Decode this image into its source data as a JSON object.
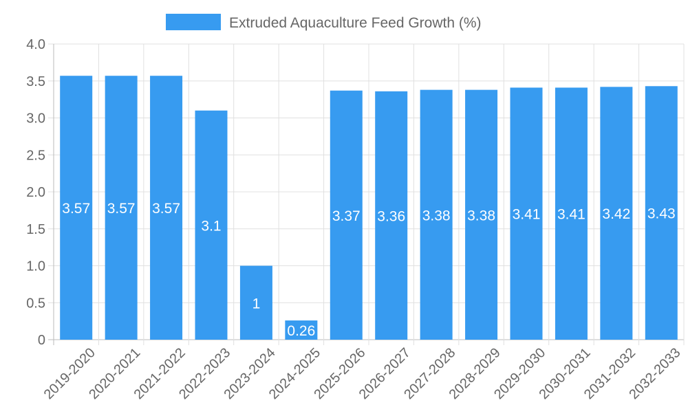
{
  "chart_data": {
    "type": "bar",
    "title": "",
    "xlabel": "",
    "ylabel": "",
    "legend": {
      "label": "Extruded Aquaculture Feed Growth (%)",
      "placement": "top-center"
    },
    "categories": [
      "2019-2020",
      "2020-2021",
      "2021-2022",
      "2022-2023",
      "2023-2024",
      "2024-2025",
      "2025-2026",
      "2026-2027",
      "2027-2028",
      "2028-2029",
      "2029-2030",
      "2030-2031",
      "2031-2032",
      "2032-2033"
    ],
    "values": [
      3.57,
      3.57,
      3.57,
      3.1,
      1,
      0.26,
      3.37,
      3.36,
      3.38,
      3.38,
      3.41,
      3.41,
      3.42,
      3.43
    ],
    "data_labels": [
      "3.57",
      "3.57",
      "3.57",
      "3.1",
      "1",
      "0.26",
      "3.37",
      "3.36",
      "3.38",
      "3.38",
      "3.41",
      "3.41",
      "3.42",
      "3.43"
    ],
    "ylim": [
      0,
      4
    ],
    "yticks": [
      "0",
      "0.5",
      "1.0",
      "1.5",
      "2.0",
      "2.5",
      "3.0",
      "3.5",
      "4.0"
    ],
    "grid": true,
    "colors": {
      "bar": "#379bf0",
      "grid": "#e0e0e0",
      "axis_text": "#666666"
    }
  }
}
